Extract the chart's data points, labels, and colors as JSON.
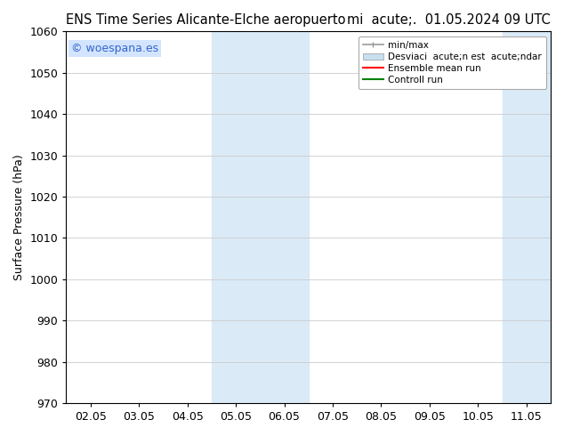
{
  "title_left": "ENS Time Series Alicante-Elche aeropuerto",
  "title_right": "mi  acute;.  01.05.2024 09 UTC",
  "ylabel": "Surface Pressure (hPa)",
  "ylim": [
    970,
    1060
  ],
  "yticks": [
    970,
    980,
    990,
    1000,
    1010,
    1020,
    1030,
    1040,
    1050,
    1060
  ],
  "xtick_labels": [
    "02.05",
    "03.05",
    "04.05",
    "05.05",
    "06.05",
    "07.05",
    "08.05",
    "09.05",
    "10.05",
    "11.05"
  ],
  "xlim_min": 0,
  "xlim_max": 9,
  "shade_regions": [
    {
      "xmin": 2.5,
      "xmax": 4.5,
      "color": "#daeaf7"
    },
    {
      "xmin": 8.5,
      "xmax": 9.5,
      "color": "#daeaf7"
    }
  ],
  "watermark": "© woespana.es",
  "watermark_color": "#3366cc",
  "watermark_bg": "#cce0ff",
  "legend_label_minmax": "min/max",
  "legend_label_std": "Desviaci  acute;n est  acute;ndar",
  "legend_label_ensemble": "Ensemble mean run",
  "legend_label_control": "Controll run",
  "legend_color_minmax": "#999999",
  "legend_color_std": "#c8dff0",
  "legend_color_ensemble": "#ff0000",
  "legend_color_control": "#008000",
  "grid_color": "#cccccc",
  "background_color": "#ffffff",
  "font_size": 9,
  "title_font_size": 10.5
}
